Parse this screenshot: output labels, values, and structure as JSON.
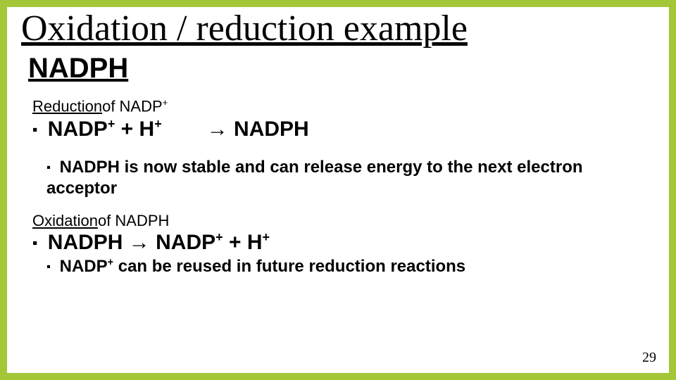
{
  "border_color": "#a4c639",
  "title": {
    "text": "Oxidation / reduction example",
    "fontsize": 52
  },
  "subheading": {
    "text": "NADPH",
    "fontsize": 40
  },
  "reduction": {
    "label_underlined": "Reduction",
    "label_rest": " of NADP",
    "label_sup": "+",
    "label_fontsize": 22,
    "eq": {
      "fontsize": 30,
      "lhs1": "NADP",
      "lhs1_sup": "+",
      "plus": " +  H",
      "lhs2_sup": "+",
      "arrow": "→ NADPH"
    },
    "note": {
      "fontsize": 24,
      "text": "NADPH is now stable and can release energy to the next electron acceptor"
    }
  },
  "oxidation": {
    "label_underlined": "Oxidation",
    "label_rest": " of NADPH",
    "label_fontsize": 22,
    "eq": {
      "fontsize": 30,
      "lhs": "NADPH  → NADP",
      "sup1": "+",
      "tail": "  +  H",
      "sup2": "+"
    },
    "note": {
      "fontsize": 24,
      "pre": "NADP",
      "sup": "+",
      "post": " can be reused in future reduction reactions"
    }
  },
  "page_number": {
    "text": "29",
    "fontsize": 20
  }
}
